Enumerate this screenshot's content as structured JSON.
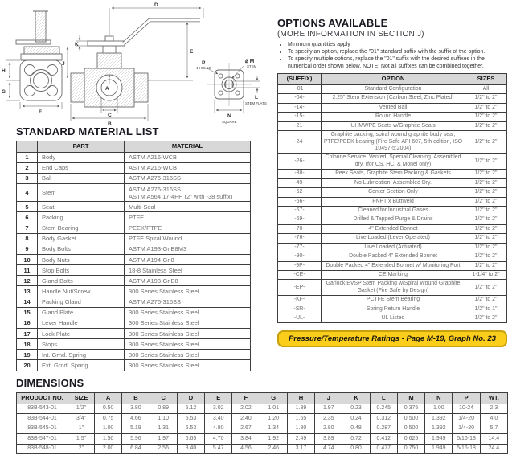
{
  "drawing": {
    "labels": {
      "a": "A",
      "b": "B",
      "c": "C",
      "d": "D",
      "e": "E",
      "f": "F",
      "g": "G",
      "h": "H",
      "j": "J",
      "k": "K",
      "p": "P",
      "p_note": "4 HOLES",
      "m": "⌀ M",
      "m_note": "STEM",
      "l": "L",
      "l_note": "STEM FLATS",
      "n": "N",
      "n_note": "SQUARE"
    }
  },
  "material_list": {
    "title": "STANDARD MATERIAL LIST",
    "headers": [
      "",
      "PART",
      "MATERIAL"
    ],
    "rows": [
      [
        "1",
        "Body",
        "ASTM A216-WCB"
      ],
      [
        "2",
        "End Caps",
        "ASTM A216-WCB"
      ],
      [
        "3",
        "Ball",
        "ASTM A276-316SS"
      ],
      [
        "4",
        "Stem",
        "ASTM A276-316SS\nASTM A564 17-4PH (2\" with -38 suffix)"
      ],
      [
        "5",
        "Seat",
        "Multi-Seal"
      ],
      [
        "6",
        "Packing",
        "PTFE"
      ],
      [
        "7",
        "Stem Bearing",
        "PEEK/PTFE"
      ],
      [
        "8",
        "Body Gasket",
        "PTFE Spiral Wound"
      ],
      [
        "9",
        "Body Bolts",
        "ASTM A193-Gr.B8M3"
      ],
      [
        "10",
        "Body Nuts",
        "ASTM A194-Gr.8"
      ],
      [
        "11",
        "Stop Bolts",
        "18-8 Stainless Steel"
      ],
      [
        "12",
        "Gland Bolts",
        "ASTM A193-Gr.B8"
      ],
      [
        "13",
        "Handle Nut/Screw",
        "300 Series Stainless Steel"
      ],
      [
        "14",
        "Packing Gland",
        "ASTM A276-316SS"
      ],
      [
        "15",
        "Gland Plate",
        "300 Series Stainless Steel"
      ],
      [
        "16",
        "Lever Handle",
        "300 Series Stainless Steel"
      ],
      [
        "17",
        "Lock Plate",
        "300 Series Stainless Steel"
      ],
      [
        "18",
        "Stops",
        "300 Series Stainless Steel"
      ],
      [
        "19",
        "Int. Grnd. Spring",
        "300 Series Stainless Steel"
      ],
      [
        "20",
        "Ext. Grnd. Spring",
        "300 Series Stainless Steel"
      ]
    ]
  },
  "options": {
    "title": "OPTIONS AVAILABLE",
    "subtitle": "(MORE INFORMATION IN SECTION J)",
    "bullets": [
      "Minimum quantities apply",
      "To specify an option, replace the \"01\" standard suffix with the suffix of the option.",
      "To specify multiple options, replace the \"01\" suffix with the desired suffixes in the numerical order shown below. NOTE: Not all suffixes can be combined together."
    ],
    "headers": [
      "(SUFFIX)",
      "OPTION",
      "SIZES"
    ],
    "rows": [
      [
        "-01",
        "Standard Configuration",
        "All"
      ],
      [
        "-04-",
        "2.25\" Stem Extension (Carbon Steel, Zinc Plated)",
        "1/2\" to 2\""
      ],
      [
        "-14-",
        "Vented Ball",
        "1/2\" to 2\""
      ],
      [
        "-15-",
        "Round Handle",
        "1/2\" to 2\""
      ],
      [
        "-21-",
        "UHMWPE Seats w/Graphite Seals",
        "1/2\" to 2\""
      ],
      [
        "-24-",
        "Graphite packing, spiral wound graphite body seal, PTFE/PEEK bearing (Fire Safe API 607, 5th edition, ISO 10497-5:2004)",
        "1/2\" to 2\""
      ],
      [
        "-26-",
        "Chlorine Service. Vented. Special Cleaning. Assembled dry. (for CS, HC, & Monel only)",
        "1/2\" to 2\""
      ],
      [
        "-38-",
        "Peek Seats, Graphite Stem Packing & Gaskets",
        "1/2\" to 2\""
      ],
      [
        "-49-",
        "No Lubrication. Assembled Dry.",
        "1/2\" to 2\""
      ],
      [
        "-62-",
        "Center Section Only",
        "1/2\" to 2\""
      ],
      [
        "-66-",
        "FNPT x Buttweld",
        "1/2\" to 2\""
      ],
      [
        "-67-",
        "Cleaned for Industrial Gases",
        "1/2\" to 2\""
      ],
      [
        "-69-",
        "Drilled & Tapped Purge & Drains",
        "1/2\" to 2\""
      ],
      [
        "-70-",
        "4\" Extended Bonnet",
        "1/2\" to 2\""
      ],
      [
        "-76-",
        "Live Loaded (Lever Operated)",
        "1/2\" to 2\""
      ],
      [
        "-77-",
        "Live Loaded (Actuated)",
        "1/2\" to 2\""
      ],
      [
        "-90-",
        "Double Packed 4\" Extended Bonnet",
        "1/2\" to 2\""
      ],
      [
        "-9P-",
        "Double Packed 4\" Extended Bonnet w/ Monitoring Port",
        "1/2\" to 2\""
      ],
      [
        "-CE-",
        "CE Marking",
        "1-1/4\" to 2\""
      ],
      [
        "-EP-",
        "Garlock EVSP Stem Packing w/Spiral Wound Graphite Gasket (Fire Safe by Design)",
        "1/2\" to 2\""
      ],
      [
        "-KF-",
        "PCTFE Stem Bearing",
        "1/2\" to 2\""
      ],
      [
        "-SR-",
        "Spring Return Handle",
        "1/2\" to 1\""
      ],
      [
        "-UL-",
        "UL Listed",
        "1/2\" to 2\""
      ]
    ],
    "banner": "Pressure/Temperature Ratings - Page M-19, Graph No. 23"
  },
  "dimensions": {
    "title": "DIMENSIONS",
    "headers": [
      "PRODUCT NO.",
      "SIZE",
      "A",
      "B",
      "C",
      "D",
      "E",
      "F",
      "G",
      "H",
      "J",
      "K",
      "L",
      "M",
      "N",
      "P",
      "WT."
    ],
    "rows": [
      [
        "83B-543-01",
        "1/2\"",
        "0.50",
        "3.80",
        "0.89",
        "5.12",
        "3.02",
        "2.02",
        "1.01",
        "1.39",
        "1.97",
        "0.23",
        "0.245",
        "0.375",
        "1.00",
        "10-24",
        "2.3"
      ],
      [
        "83B-544-01",
        "3/4\"",
        "0.75",
        "4.66",
        "1.10",
        "5.53",
        "3.40",
        "2.40",
        "1.20",
        "1.65",
        "2.35",
        "0.24",
        "0.312",
        "0.500",
        "1.392",
        "1/4-20",
        "4.0"
      ],
      [
        "83B-545-01",
        "1\"",
        "1.00",
        "5.19",
        "1.31",
        "6.53",
        "4.80",
        "2.67",
        "1.34",
        "1.80",
        "2.80",
        "0.48",
        "0.287",
        "0.500",
        "1.392",
        "1/4-20",
        "5.7"
      ],
      [
        "83B-547-01",
        "1.5\"",
        "1.50",
        "5.96",
        "1.97",
        "6.65",
        "4.70",
        "3.84",
        "1.92",
        "2.49",
        "3.89",
        "0.72",
        "0.412",
        "0.625",
        "1.949",
        "5/16-18",
        "14.4"
      ],
      [
        "83B-548-01",
        "2\"",
        "2.00",
        "6.84",
        "2.56",
        "8.40",
        "5.47",
        "4.56",
        "2.46",
        "3.17",
        "4.74",
        "0.80",
        "0.477",
        "0.750",
        "1.949",
        "5/16-18",
        "24.4"
      ]
    ]
  }
}
